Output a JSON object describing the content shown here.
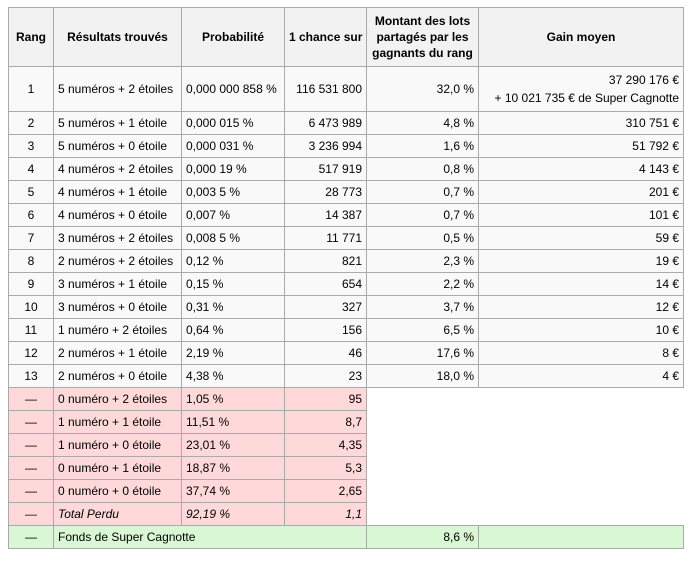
{
  "headers": {
    "rang": "Rang",
    "resultats": "Résultats trouvés",
    "probabilite": "Probabilité",
    "chance": "1 chance sur",
    "montant": "Montant des lots partagés par les gagnants du rang",
    "gain": "Gain moyen"
  },
  "rows": [
    {
      "rang": "1",
      "res": "5 numéros + 2 étoiles",
      "prob": "0,000 000 858 %",
      "chance": "116 531 800",
      "montant": "32,0 %",
      "gain": "37 290 176 €",
      "gain2": "+ 10 021 735 € de Super Cagnotte"
    },
    {
      "rang": "2",
      "res": "5 numéros + 1 étoile",
      "prob": "0,000 015 %",
      "chance": "6 473 989",
      "montant": "4,8 %",
      "gain": "310 751 €"
    },
    {
      "rang": "3",
      "res": "5 numéros + 0 étoile",
      "prob": "0,000 031 %",
      "chance": "3 236 994",
      "montant": "1,6 %",
      "gain": "51 792 €"
    },
    {
      "rang": "4",
      "res": "4 numéros + 2 étoiles",
      "prob": "0,000 19 %",
      "chance": "517 919",
      "montant": "0,8 %",
      "gain": "4 143 €"
    },
    {
      "rang": "5",
      "res": "4 numéros + 1 étoile",
      "prob": "0,003 5 %",
      "chance": "28 773",
      "montant": "0,7 %",
      "gain": "201 €"
    },
    {
      "rang": "6",
      "res": "4 numéros + 0 étoile",
      "prob": "0,007 %",
      "chance": "14 387",
      "montant": "0,7 %",
      "gain": "101 €"
    },
    {
      "rang": "7",
      "res": "3 numéros + 2 étoiles",
      "prob": "0,008 5 %",
      "chance": "11 771",
      "montant": "0,5 %",
      "gain": "59 €"
    },
    {
      "rang": "8",
      "res": "2 numéros + 2 étoiles",
      "prob": "0,12 %",
      "chance": "821",
      "montant": "2,3 %",
      "gain": "19 €"
    },
    {
      "rang": "9",
      "res": "3 numéros + 1 étoile",
      "prob": "0,15 %",
      "chance": "654",
      "montant": "2,2 %",
      "gain": "14 €"
    },
    {
      "rang": "10",
      "res": "3 numéros + 0 étoile",
      "prob": "0,31 %",
      "chance": "327",
      "montant": "3,7 %",
      "gain": "12 €"
    },
    {
      "rang": "11",
      "res": "1 numéro + 2 étoiles",
      "prob": "0,64 %",
      "chance": "156",
      "montant": "6,5 %",
      "gain": "10 €"
    },
    {
      "rang": "12",
      "res": "2 numéros + 1 étoile",
      "prob": "2,19 %",
      "chance": "46",
      "montant": "17,6 %",
      "gain": "8 €"
    },
    {
      "rang": "13",
      "res": "2 numéros + 0 étoile",
      "prob": "4,38 %",
      "chance": "23",
      "montant": "18,0 %",
      "gain": "4 €"
    }
  ],
  "lost_rows": [
    {
      "rang": "—",
      "res": "0 numéro + 2 étoiles",
      "prob": "1,05 %",
      "chance": "95"
    },
    {
      "rang": "—",
      "res": "1 numéro + 1 étoile",
      "prob": "11,51 %",
      "chance": "8,7"
    },
    {
      "rang": "—",
      "res": "1 numéro + 0 étoile",
      "prob": "23,01 %",
      "chance": "4,35"
    },
    {
      "rang": "—",
      "res": "0 numéro + 1 étoile",
      "prob": "18,87 %",
      "chance": "5,3"
    },
    {
      "rang": "—",
      "res": "0 numéro + 0 étoile",
      "prob": "37,74 %",
      "chance": "2,65"
    }
  ],
  "total": {
    "rang": "—",
    "res": "Total Perdu",
    "prob": "92,19 %",
    "chance": "1,1"
  },
  "fund": {
    "rang": "—",
    "res": "Fonds de Super Cagnotte",
    "montant": "8,6 %"
  },
  "colors": {
    "lost": "#ffd9d9",
    "fund": "#d9f7d4",
    "header": "#f2f2f2",
    "border": "#aaaaaa"
  }
}
